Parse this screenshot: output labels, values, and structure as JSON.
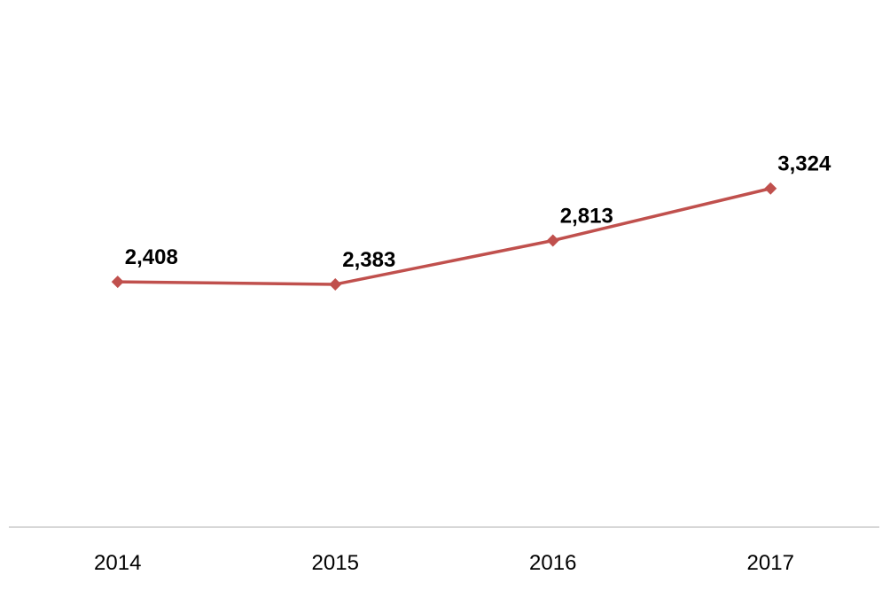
{
  "chart_data": {
    "type": "line",
    "title": "",
    "xlabel": "",
    "ylabel": "",
    "categories": [
      "2014",
      "2015",
      "2016",
      "2017"
    ],
    "series": [
      {
        "values": [
          2408,
          2383,
          2813,
          3324
        ],
        "labels": [
          "2,408",
          "2,383",
          "2,813",
          "3,324"
        ],
        "color": "#c0504d",
        "marker": "diamond"
      }
    ],
    "ylim": [
      0,
      3500
    ],
    "grid": false,
    "legend": "none",
    "yaxis_visible": false,
    "axis_color": "#bfbfbf"
  }
}
